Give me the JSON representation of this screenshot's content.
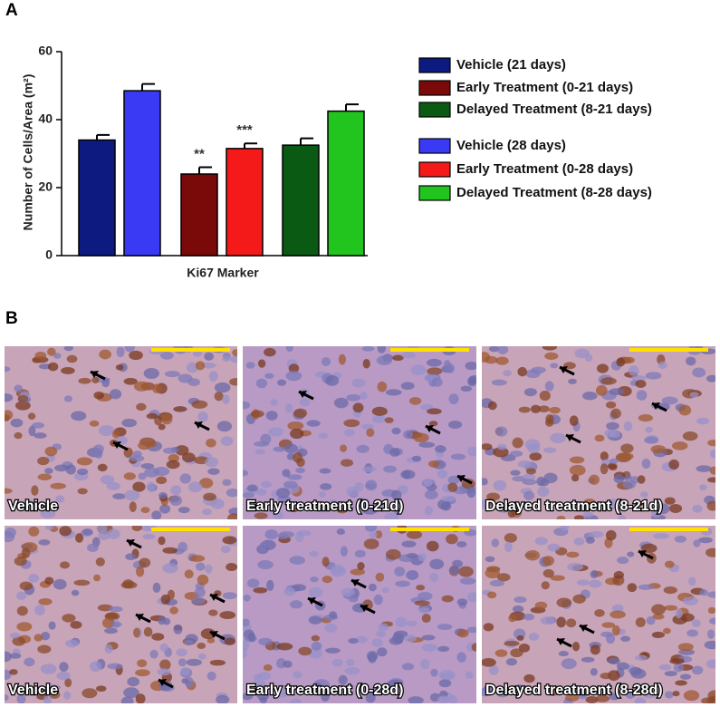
{
  "panel_a_label": "A",
  "chart_data": {
    "type": "bar",
    "y_label": "Number of Cells/Area (m²)",
    "x_label": "Ki67 Marker",
    "ylim": [
      0,
      60
    ],
    "yticks": [
      0,
      20,
      40,
      60
    ],
    "series": [
      {
        "name": "Vehicle (21 days)",
        "color": "#0d1a80",
        "values": [
          34
        ],
        "errors": [
          1.5
        ]
      },
      {
        "name": "Early Treatment (0-21 days)",
        "color": "#7a0a0a",
        "values": [
          24
        ],
        "errors": [
          2
        ],
        "annotation": "**"
      },
      {
        "name": "Delayed Treatment (8-21 days)",
        "color": "#0b5a14",
        "values": [
          32.5
        ],
        "errors": [
          2
        ]
      },
      {
        "name": "Vehicle (28 days)",
        "color": "#3a3af5",
        "values": [
          48.5
        ],
        "errors": [
          2
        ]
      },
      {
        "name": "Early Treatment (0-28 days)",
        "color": "#f51a1a",
        "values": [
          31.5
        ],
        "errors": [
          1.5
        ],
        "annotation": "***"
      },
      {
        "name": "Delayed Treatment (8-28 days)",
        "color": "#22c41e",
        "values": [
          42.5
        ],
        "errors": [
          2
        ]
      }
    ]
  },
  "panel_b": {
    "label": "B",
    "images": [
      {
        "caption": "Vehicle"
      },
      {
        "caption": "Early treatment (0-21d)"
      },
      {
        "caption": "Delayed treatment (8-21d)"
      },
      {
        "caption": "Vehicle"
      },
      {
        "caption": "Early treatment (0-28d)"
      },
      {
        "caption": "Delayed treatment (8-28d)"
      }
    ]
  }
}
